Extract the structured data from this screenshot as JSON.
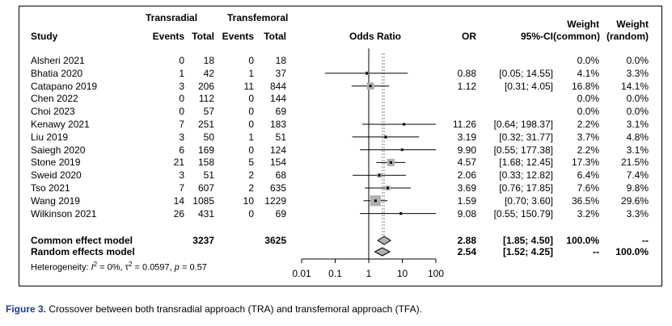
{
  "chart_data": {
    "type": "forest",
    "headers": {
      "study": "Study",
      "group1": "Transradial",
      "group2": "Transfemoral",
      "events1": "Events",
      "total1": "Total",
      "events2": "Events",
      "total2": "Total",
      "plot": "Odds Ratio",
      "or": "OR",
      "ci": "95%-CI",
      "weight_common": "Weight",
      "weight_common_sub": "(common)",
      "weight_random": "Weight",
      "weight_random_sub": "(random)"
    },
    "studies": [
      {
        "name": "Alsheri 2021",
        "e1": "0",
        "n1": "18",
        "e2": "0",
        "n2": "18",
        "or_text": "",
        "ci_text": "",
        "or": null,
        "lo": null,
        "hi": null,
        "wc": "0.0%",
        "wr": "0.0%",
        "w": 0
      },
      {
        "name": "Bhatia 2020",
        "e1": "1",
        "n1": "42",
        "e2": "1",
        "n2": "37",
        "or_text": "0.88",
        "ci_text": "[0.05; 14.55]",
        "or": 0.88,
        "lo": 0.05,
        "hi": 14.55,
        "wc": "4.1%",
        "wr": "3.3%",
        "w": 4.1
      },
      {
        "name": "Catapano 2019",
        "e1": "3",
        "n1": "206",
        "e2": "11",
        "n2": "844",
        "or_text": "1.12",
        "ci_text": "[0.31; 4.05]",
        "or": 1.12,
        "lo": 0.31,
        "hi": 4.05,
        "wc": "16.8%",
        "wr": "14.1%",
        "w": 16.8
      },
      {
        "name": "Chen 2022",
        "e1": "0",
        "n1": "112",
        "e2": "0",
        "n2": "144",
        "or_text": "",
        "ci_text": "",
        "or": null,
        "lo": null,
        "hi": null,
        "wc": "0.0%",
        "wr": "0.0%",
        "w": 0
      },
      {
        "name": "Choi 2023",
        "e1": "0",
        "n1": "57",
        "e2": "0",
        "n2": "69",
        "or_text": "",
        "ci_text": "",
        "or": null,
        "lo": null,
        "hi": null,
        "wc": "0.0%",
        "wr": "0.0%",
        "w": 0
      },
      {
        "name": "Kenawy 2021",
        "e1": "7",
        "n1": "251",
        "e2": "0",
        "n2": "183",
        "or_text": "11.26",
        "ci_text": "[0.64; 198.37]",
        "or": 11.26,
        "lo": 0.64,
        "hi": 198.37,
        "wc": "2.2%",
        "wr": "3.1%",
        "w": 2.2
      },
      {
        "name": "Liu 2019",
        "e1": "3",
        "n1": "50",
        "e2": "1",
        "n2": "51",
        "or_text": "3.19",
        "ci_text": "[0.32; 31.77]",
        "or": 3.19,
        "lo": 0.32,
        "hi": 31.77,
        "wc": "3.7%",
        "wr": "4.8%",
        "w": 3.7
      },
      {
        "name": "Saiegh 2020",
        "e1": "6",
        "n1": "169",
        "e2": "0",
        "n2": "124",
        "or_text": "9.90",
        "ci_text": "[0.55; 177.38]",
        "or": 9.9,
        "lo": 0.55,
        "hi": 177.38,
        "wc": "2.2%",
        "wr": "3.1%",
        "w": 2.2
      },
      {
        "name": "Stone 2019",
        "e1": "21",
        "n1": "158",
        "e2": "5",
        "n2": "154",
        "or_text": "4.57",
        "ci_text": "[1.68; 12.45]",
        "or": 4.57,
        "lo": 1.68,
        "hi": 12.45,
        "wc": "17.3%",
        "wr": "21.5%",
        "w": 17.3
      },
      {
        "name": "Sweid 2020",
        "e1": "3",
        "n1": "51",
        "e2": "2",
        "n2": "68",
        "or_text": "2.06",
        "ci_text": "[0.33; 12.82]",
        "or": 2.06,
        "lo": 0.33,
        "hi": 12.82,
        "wc": "6.4%",
        "wr": "7.4%",
        "w": 6.4
      },
      {
        "name": "Tso 2021",
        "e1": "7",
        "n1": "607",
        "e2": "2",
        "n2": "635",
        "or_text": "3.69",
        "ci_text": "[0.76; 17.85]",
        "or": 3.69,
        "lo": 0.76,
        "hi": 17.85,
        "wc": "7.6%",
        "wr": "9.8%",
        "w": 7.6
      },
      {
        "name": "Wang 2019",
        "e1": "14",
        "n1": "1085",
        "e2": "10",
        "n2": "1229",
        "or_text": "1.59",
        "ci_text": "[0.70; 3.60]",
        "or": 1.59,
        "lo": 0.7,
        "hi": 3.6,
        "wc": "36.5%",
        "wr": "29.6%",
        "w": 36.5
      },
      {
        "name": "Wilkinson 2021",
        "e1": "26",
        "n1": "431",
        "e2": "0",
        "n2": "69",
        "or_text": "9.08",
        "ci_text": "[0.55; 150.79]",
        "or": 9.08,
        "lo": 0.55,
        "hi": 150.79,
        "wc": "3.2%",
        "wr": "3.3%",
        "w": 3.2
      }
    ],
    "summary": [
      {
        "name": "Common effect model",
        "n1": "3237",
        "n2": "3625",
        "or_text": "2.88",
        "ci_text": "[1.85; 4.50]",
        "or": 2.88,
        "lo": 1.85,
        "hi": 4.5,
        "wc": "100.0%",
        "wr": "--"
      },
      {
        "name": "Random effects model",
        "n1": "",
        "n2": "",
        "or_text": "2.54",
        "ci_text": "[1.52; 4.25]",
        "or": 2.54,
        "lo": 1.52,
        "hi": 4.25,
        "wc": "--",
        "wr": "100.0%"
      }
    ],
    "heterogeneity": {
      "prefix": "Heterogeneity: ",
      "i2_label": "I",
      "i2_sup": "2",
      "i2_value": " = 0%, ",
      "tau_label": "τ",
      "tau_sup": "2",
      "tau_value": " = 0.0597, ",
      "p_label": "p",
      "p_value": " = 0.57"
    },
    "x_axis": {
      "scale": "log",
      "ticks": [
        0.01,
        0.1,
        1,
        10,
        100
      ],
      "tick_labels": [
        "0.01",
        "0.1",
        "1",
        "10",
        "100"
      ],
      "reference": 1
    }
  },
  "caption": {
    "label": "Figure 3.",
    "text": " Crossover between both transradial approach (TRA) and transfemoral approach (TFA)."
  }
}
